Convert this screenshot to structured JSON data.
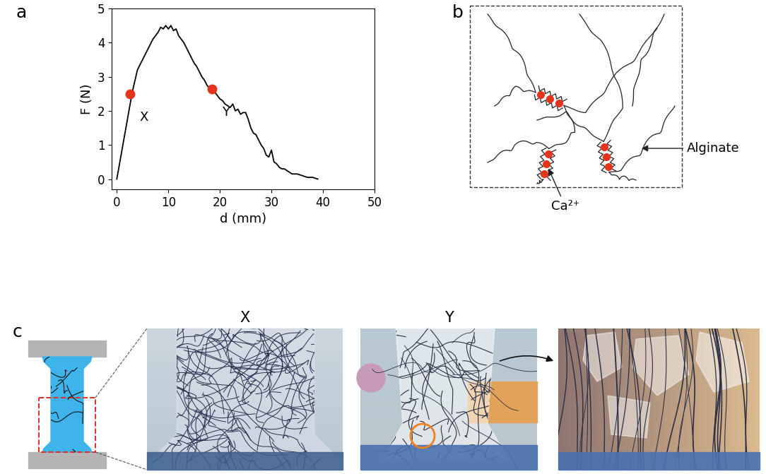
{
  "chart_data": {
    "type": "line",
    "x_label": "d (mm)",
    "y_label": "F (N)",
    "color": "#000000",
    "x": [
      0,
      1,
      2,
      3,
      4,
      5,
      6,
      7,
      8,
      8.5,
      9,
      9.5,
      10,
      10.5,
      11,
      11.5,
      12,
      12.5,
      13,
      13.5,
      14,
      14.5,
      15,
      15.5,
      16,
      16.5,
      17,
      17.5,
      18,
      18.5,
      19,
      19.5,
      20,
      20.5,
      21,
      21.5,
      22,
      22.5,
      23,
      23.5,
      24,
      24.5,
      25,
      25.5,
      26,
      26.5,
      27,
      27.5,
      28,
      28.5,
      29,
      29.5,
      30,
      30.5,
      31,
      31.5,
      32,
      32.5,
      33,
      33.5,
      34,
      35,
      36,
      37,
      38,
      39
    ],
    "values": [
      0,
      0.85,
      1.7,
      2.55,
      3.2,
      3.5,
      3.8,
      4.1,
      4.3,
      4.45,
      4.4,
      4.5,
      4.4,
      4.5,
      4.35,
      4.4,
      4.2,
      4.1,
      4.0,
      3.85,
      3.7,
      3.55,
      3.4,
      3.3,
      3.15,
      3.0,
      2.9,
      2.75,
      2.65,
      2.7,
      2.55,
      2.45,
      2.35,
      2.3,
      2.2,
      2.15,
      2.1,
      2.2,
      2.0,
      2.05,
      1.9,
      1.95,
      1.95,
      1.75,
      1.5,
      1.35,
      1.3,
      1.15,
      1.0,
      0.9,
      0.7,
      0.65,
      0.85,
      0.5,
      0.45,
      0.35,
      0.3,
      0.3,
      0.25,
      0.2,
      0.15,
      0.15,
      0.1,
      0.05,
      0.05,
      0.0
    ],
    "xlim": [
      -1,
      50
    ],
    "xticks": [
      0,
      10,
      20,
      30,
      40,
      50
    ],
    "ylim": [
      -0.3,
      5
    ],
    "yticks": [
      0,
      1,
      2,
      3,
      4,
      5
    ],
    "annotations": [
      {
        "text": "X",
        "x": 2.5,
        "y": 2.5,
        "color": "#e5341c"
      },
      {
        "text": "Y",
        "x": 18.5,
        "y": 2.65,
        "color": "#e5341c"
      }
    ]
  },
  "panel_labels": [
    "a",
    "b",
    "c"
  ],
  "diagram": {
    "polymer_label": "Alginate",
    "ion_label": "Ca²⁺"
  },
  "photos": {
    "titles": [
      "X",
      "Y"
    ]
  }
}
